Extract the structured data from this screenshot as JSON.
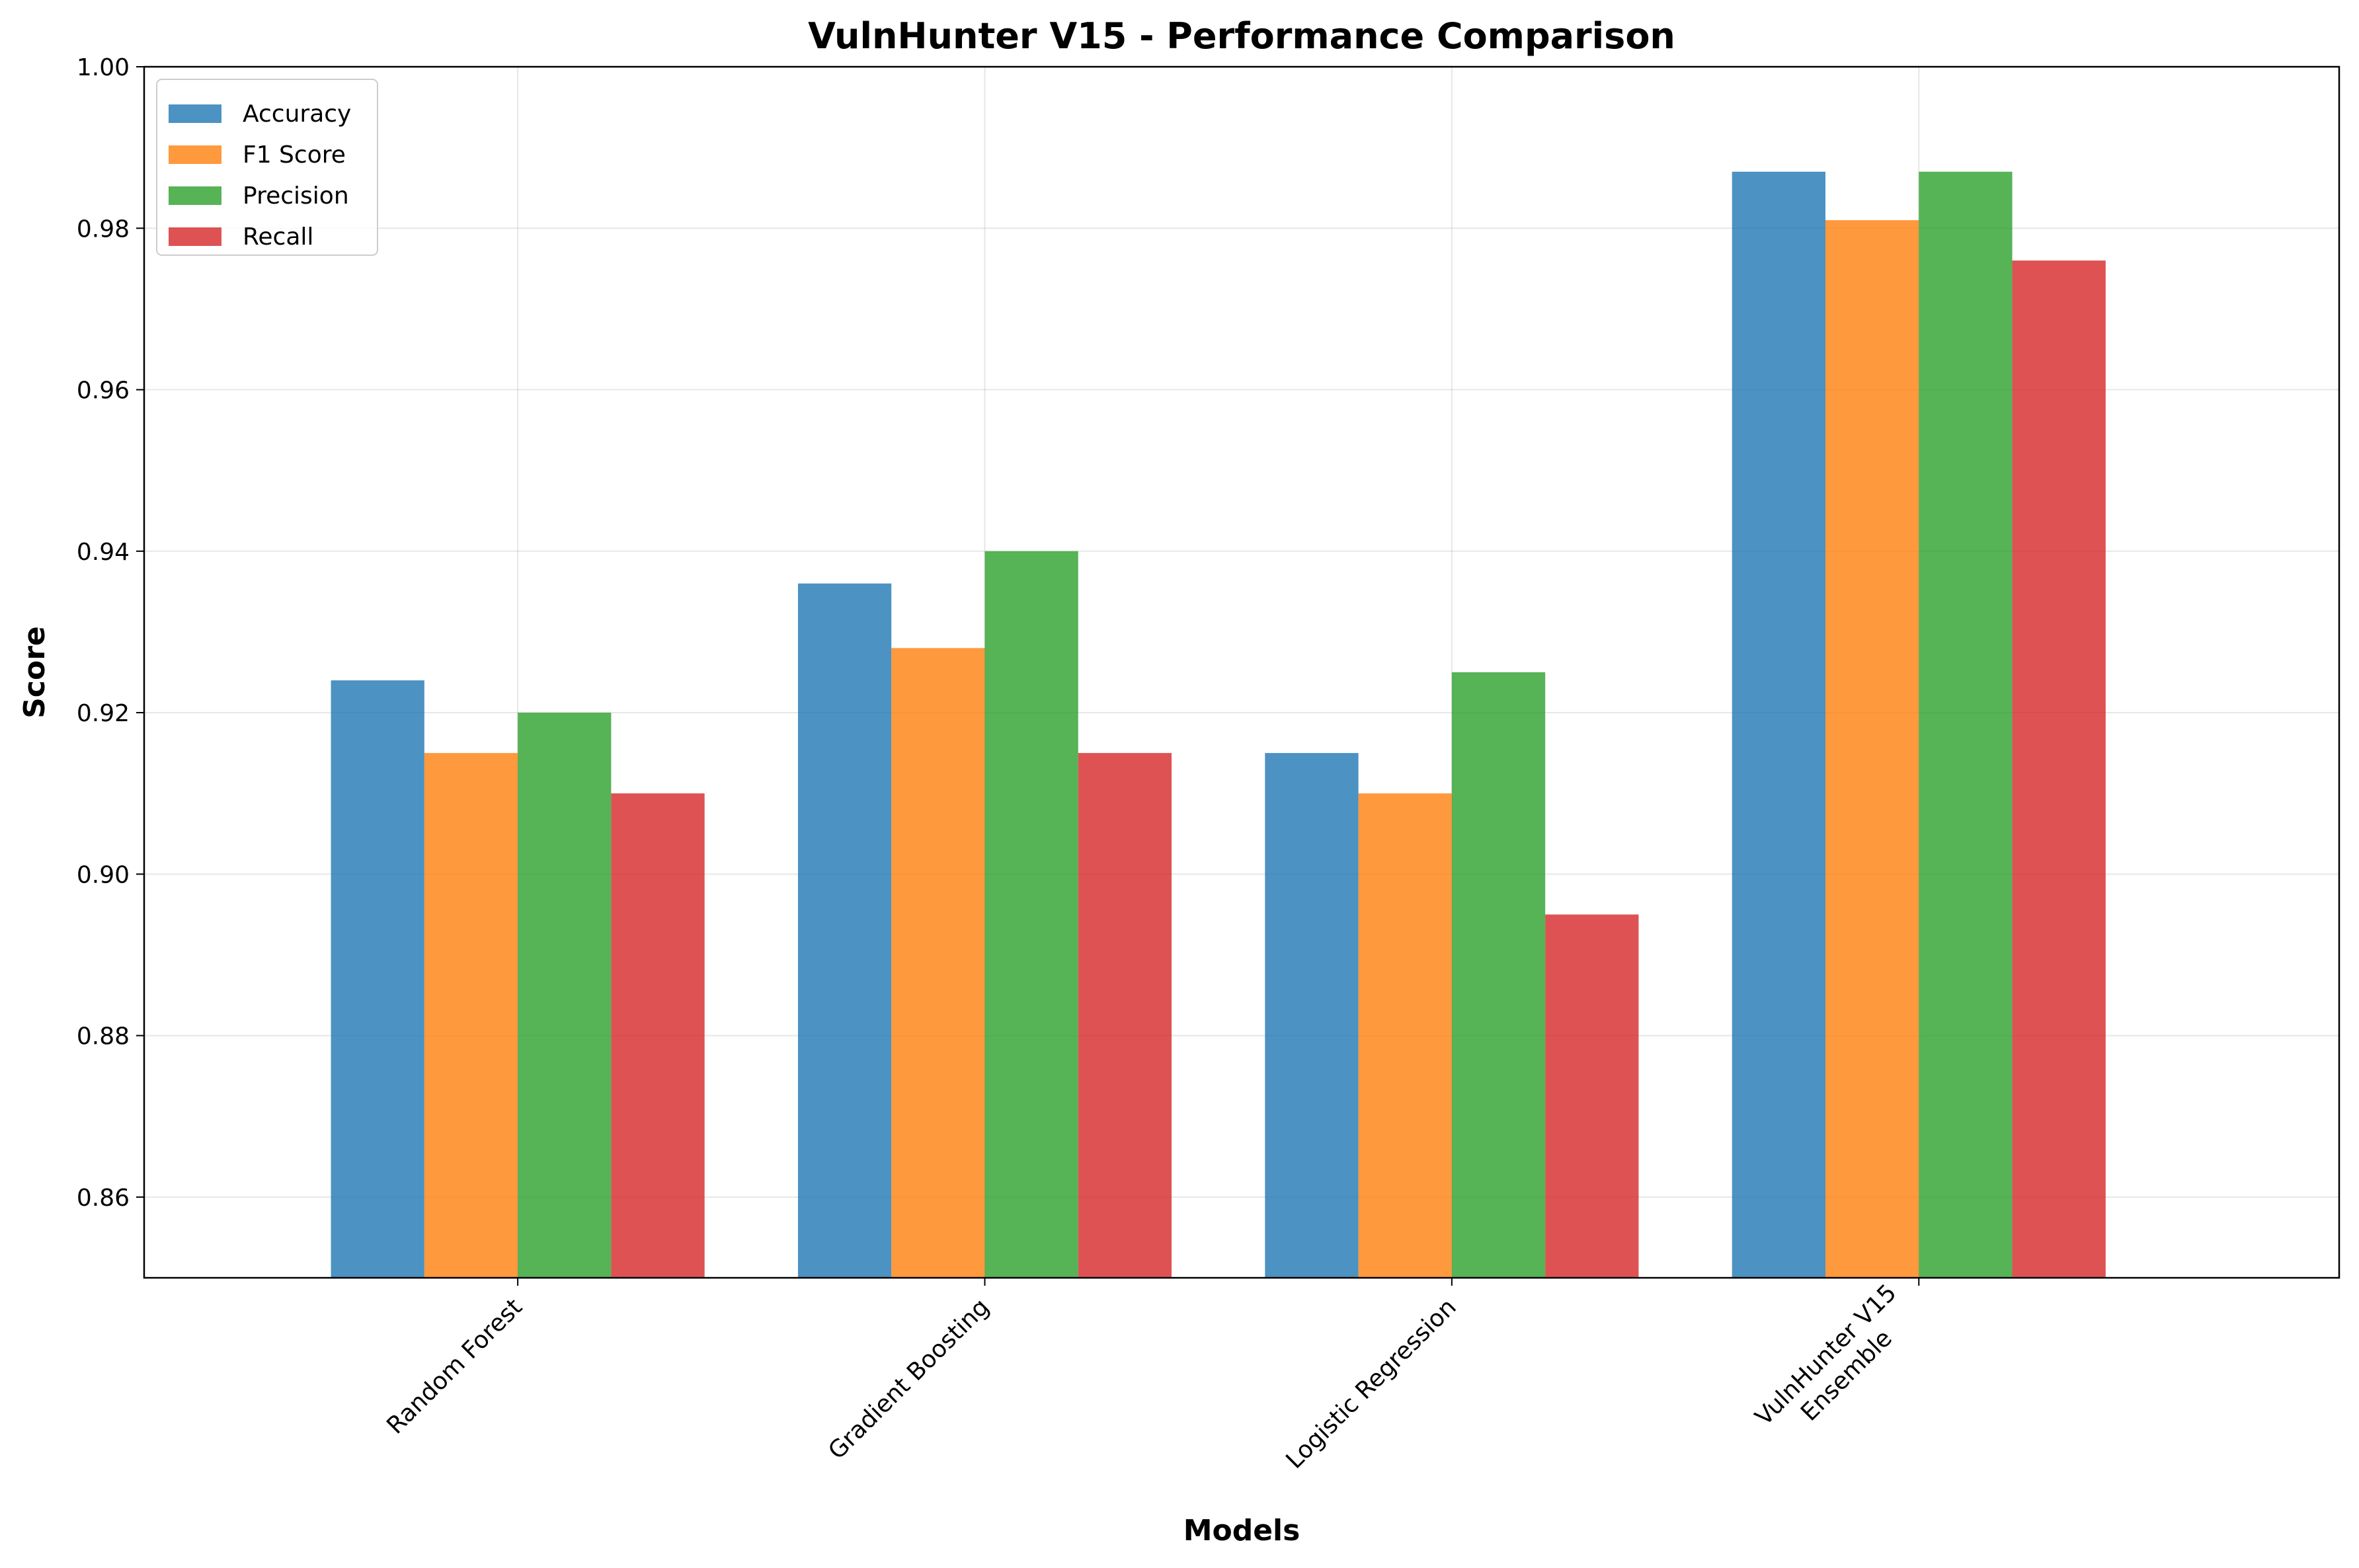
{
  "chart_data": {
    "type": "bar",
    "title": "VulnHunter V15 - Performance Comparison",
    "xlabel": "Models",
    "ylabel": "Score",
    "categories": [
      [
        "Random Forest"
      ],
      [
        "Gradient Boosting"
      ],
      [
        "Logistic Regression"
      ],
      [
        "VulnHunter V15",
        "Ensemble"
      ]
    ],
    "series": [
      {
        "name": "Accuracy",
        "color": "#1f77b4",
        "values": [
          0.924,
          0.936,
          0.915,
          0.987
        ]
      },
      {
        "name": "F1 Score",
        "color": "#ff7f0e",
        "values": [
          0.915,
          0.928,
          0.91,
          0.981
        ]
      },
      {
        "name": "Precision",
        "color": "#2ca02c",
        "values": [
          0.92,
          0.94,
          0.925,
          0.987
        ]
      },
      {
        "name": "Recall",
        "color": "#d62728",
        "values": [
          0.91,
          0.915,
          0.895,
          0.976
        ]
      }
    ],
    "ylim": [
      0.85,
      1.0
    ],
    "yticks": [
      "0.86",
      "0.88",
      "0.90",
      "0.92",
      "0.94",
      "0.96",
      "0.98",
      "1.00"
    ],
    "bar_opacity": 0.8,
    "grid": true,
    "legend_position": "top-left"
  }
}
